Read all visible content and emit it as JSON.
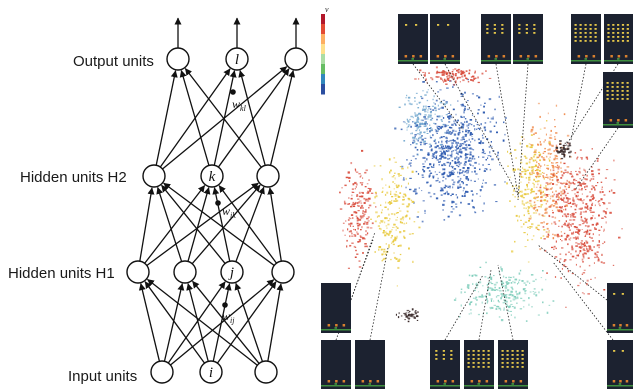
{
  "network": {
    "layers": [
      {
        "id": "output",
        "label": "Output units",
        "units": [
          "",
          "l",
          ""
        ]
      },
      {
        "id": "h2",
        "label": "Hidden units H2",
        "units": [
          "",
          "k",
          ""
        ]
      },
      {
        "id": "h1",
        "label": "Hidden units H1",
        "units": [
          "",
          "",
          "j",
          ""
        ]
      },
      {
        "id": "input",
        "label": "Input units",
        "units": [
          "",
          "i",
          ""
        ]
      }
    ],
    "weights": [
      {
        "symbol": "w",
        "subscript": "kl"
      },
      {
        "symbol": "w",
        "subscript": "jk"
      },
      {
        "symbol": "w",
        "subscript": "ij"
      }
    ]
  },
  "embedding": {
    "colorbar_label": "v",
    "colorbar_colors": [
      "#b2182b",
      "#e34a33",
      "#fdae61",
      "#fee08b",
      "#abdda4",
      "#66bd63",
      "#3288bd",
      "#2b4ea0"
    ],
    "cluster_colors": {
      "blue": "#2e5bb0",
      "lightblue": "#74a9cf",
      "cyan": "#7fcdbb",
      "yellow": "#e8c93e",
      "orange": "#f08a4b",
      "red": "#d84a3a",
      "dark": "#3a2a2a"
    },
    "screen_colors": {
      "background": "#1c2230",
      "ground": "#3f8f3f",
      "alien": "#e6c84a",
      "player": "#d9802f"
    }
  }
}
